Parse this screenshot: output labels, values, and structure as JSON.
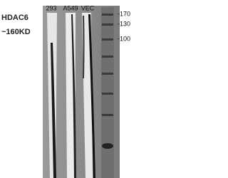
{
  "labels": {
    "protein": "HDAC6",
    "size": "~160KD"
  },
  "lanes": [
    "293",
    "A549",
    "VEC"
  ],
  "markers": [
    "-170",
    "-130",
    "-100"
  ]
}
